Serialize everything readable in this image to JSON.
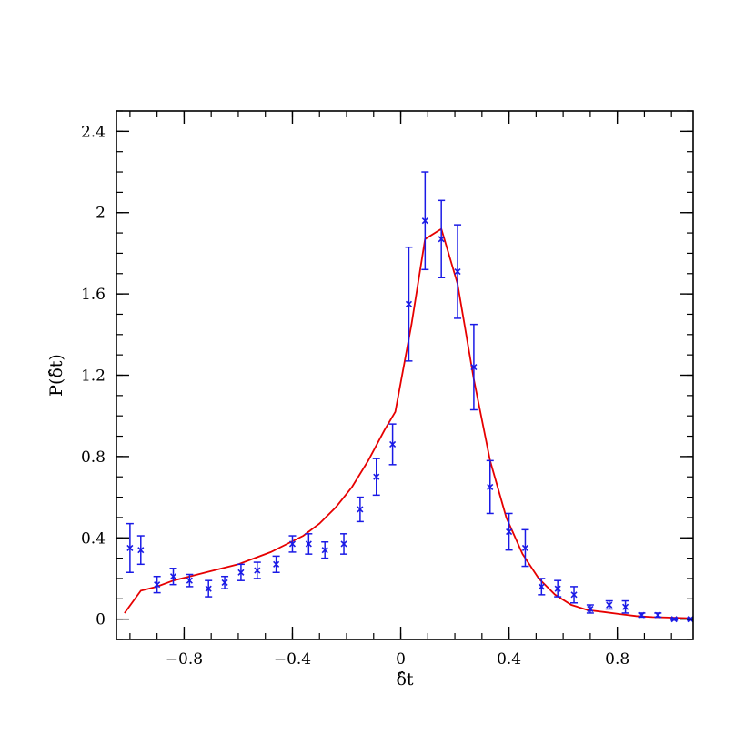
{
  "chart_data": {
    "type": "scatter",
    "xlabel": "δ̂t",
    "ylabel": "P(δ̂t)",
    "xlim": [
      -1.05,
      1.08
    ],
    "ylim": [
      -0.1,
      2.5
    ],
    "xticks": [
      -0.8,
      -0.4,
      0,
      0.4,
      0.8
    ],
    "xtick_labels": [
      "−0.8",
      "−0.4",
      "0",
      "0.4",
      "0.8"
    ],
    "yticks": [
      0,
      0.4,
      0.8,
      1.2,
      1.6,
      2,
      2.4
    ],
    "ytick_labels": [
      "0",
      "0.4",
      "0.8",
      "1.2",
      "1.6",
      "2",
      "2.4"
    ],
    "grid": false,
    "colors": {
      "points": "#1a1ae6",
      "curve": "#e60000",
      "axis": "#000000"
    },
    "series": [
      {
        "kind": "points-with-errorbars",
        "x": [
          -1.0,
          -0.96,
          -0.9,
          -0.84,
          -0.78,
          -0.71,
          -0.65,
          -0.59,
          -0.53,
          -0.46,
          -0.4,
          -0.34,
          -0.28,
          -0.21,
          -0.15,
          -0.09,
          -0.03,
          0.03,
          0.09,
          0.15,
          0.21,
          0.27,
          0.33,
          0.4,
          0.46,
          0.52,
          0.58,
          0.64,
          0.7,
          0.77,
          0.83,
          0.89,
          0.95,
          1.01,
          1.07
        ],
        "y": [
          0.35,
          0.34,
          0.17,
          0.21,
          0.19,
          0.15,
          0.18,
          0.23,
          0.24,
          0.27,
          0.37,
          0.37,
          0.34,
          0.37,
          0.54,
          0.7,
          0.86,
          1.55,
          1.96,
          1.87,
          1.71,
          1.24,
          0.65,
          0.43,
          0.35,
          0.16,
          0.15,
          0.12,
          0.05,
          0.07,
          0.06,
          0.02,
          0.02,
          0.0,
          0.0
        ],
        "yerr": [
          0.12,
          0.07,
          0.04,
          0.04,
          0.03,
          0.04,
          0.03,
          0.04,
          0.04,
          0.04,
          0.04,
          0.05,
          0.04,
          0.05,
          0.06,
          0.09,
          0.1,
          0.28,
          0.24,
          0.19,
          0.23,
          0.21,
          0.13,
          0.09,
          0.09,
          0.04,
          0.04,
          0.04,
          0.02,
          0.02,
          0.03,
          0.01,
          0.01,
          0.005,
          0.005
        ]
      },
      {
        "kind": "line",
        "x": [
          -1.02,
          -0.96,
          -0.9,
          -0.84,
          -0.78,
          -0.72,
          -0.66,
          -0.6,
          -0.54,
          -0.48,
          -0.42,
          -0.36,
          -0.3,
          -0.24,
          -0.18,
          -0.12,
          -0.06,
          -0.02,
          0.04,
          0.09,
          0.15,
          0.21,
          0.27,
          0.33,
          0.39,
          0.45,
          0.51,
          0.57,
          0.63,
          0.69,
          0.75,
          0.81,
          0.87,
          0.93,
          0.99,
          1.05,
          1.08
        ],
        "y": [
          0.03,
          0.14,
          0.16,
          0.19,
          0.21,
          0.23,
          0.25,
          0.27,
          0.3,
          0.33,
          0.37,
          0.41,
          0.47,
          0.55,
          0.65,
          0.78,
          0.93,
          1.02,
          1.45,
          1.87,
          1.92,
          1.65,
          1.18,
          0.78,
          0.5,
          0.32,
          0.2,
          0.12,
          0.07,
          0.045,
          0.035,
          0.025,
          0.015,
          0.01,
          0.008,
          0.005,
          0.004
        ]
      }
    ]
  }
}
